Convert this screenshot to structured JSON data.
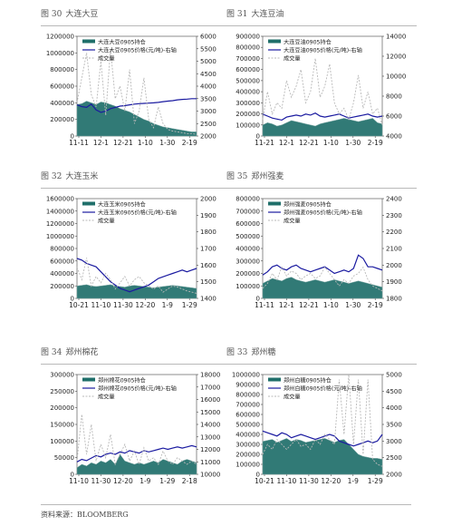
{
  "panels": [
    {
      "num": "图 30",
      "title": "大连大豆"
    },
    {
      "num": "图 31",
      "title": "大连豆油"
    },
    {
      "num": "图 32",
      "title": "大连玉米"
    },
    {
      "num": "图 35",
      "title": "郑州强麦"
    },
    {
      "num": "图 34",
      "title": "郑州棉花"
    },
    {
      "num": "图 33",
      "title": "郑州糖"
    }
  ],
  "source": "资料来源：BLOOMBERG",
  "colors": {
    "area": "#1f6f6a",
    "area_light": "#7fa9a6",
    "line": "#1a1aa0",
    "dash": "#b8b8b8"
  },
  "chart_data": [
    {
      "type": "area",
      "legend": [
        "大连大豆0905持仓",
        "大连大豆0905价格(元/吨)-右轴",
        "成交量"
      ],
      "x_ticks": [
        "11-11",
        "12-1",
        "12-21",
        "1-10",
        "1-30",
        "2-19"
      ],
      "left_ticks": [
        "0",
        "200000",
        "400000",
        "600000",
        "800000",
        "1000000",
        "1200000"
      ],
      "right_ticks": [
        "2000",
        "2500",
        "3000",
        "3500",
        "4000",
        "4500",
        "5000",
        "5500",
        "6000"
      ],
      "left_range": [
        0,
        1200000
      ],
      "right_range": [
        2000,
        6000
      ],
      "series": [
        {
          "name": "大连大豆0905持仓",
          "axis": "left",
          "kind": "area",
          "values": [
            380000,
            390000,
            420000,
            400000,
            380000,
            410000,
            400000,
            380000,
            360000,
            330000,
            310000,
            290000,
            260000,
            230000,
            200000,
            180000,
            150000,
            130000,
            110000,
            100000,
            90000,
            80000,
            70000,
            60000,
            50000,
            50000
          ]
        },
        {
          "name": "大连大豆0905价格(元/吨)-右轴",
          "axis": "right",
          "kind": "line",
          "values": [
            3250,
            3180,
            3150,
            3280,
            3050,
            2950,
            3000,
            3100,
            3150,
            3200,
            3220,
            3250,
            3280,
            3300,
            3310,
            3320,
            3330,
            3350,
            3380,
            3400,
            3420,
            3450,
            3470,
            3480,
            3500,
            3500
          ]
        },
        {
          "name": "成交量",
          "axis": "left",
          "kind": "dash",
          "values": [
            400000,
            700000,
            1000000,
            500000,
            350000,
            900000,
            250000,
            1050000,
            450000,
            600000,
            300000,
            800000,
            150000,
            300000,
            700000,
            200000,
            100000,
            350000,
            150000,
            80000,
            60000,
            50000,
            40000,
            30000,
            30000,
            20000
          ]
        }
      ]
    },
    {
      "type": "area",
      "legend": [
        "大连豆油0905持仓",
        "大连豆油0905价格(元/吨)-右轴",
        "成交量"
      ],
      "x_ticks": [
        "11-21",
        "12-1",
        "12-21",
        "1-10",
        "1-30",
        "2-19"
      ],
      "left_ticks": [
        "0",
        "100000",
        "200000",
        "300000",
        "400000",
        "500000",
        "600000",
        "700000",
        "800000",
        "900000"
      ],
      "right_ticks": [
        "4000",
        "6000",
        "8000",
        "10000",
        "12000",
        "14000"
      ],
      "left_range": [
        0,
        900000
      ],
      "right_range": [
        4000,
        14000
      ],
      "series": [
        {
          "name": "大连豆油0905持仓",
          "axis": "left",
          "kind": "area",
          "values": [
            100000,
            120000,
            110000,
            90000,
            100000,
            120000,
            140000,
            130000,
            120000,
            110000,
            100000,
            90000,
            110000,
            120000,
            130000,
            140000,
            150000,
            160000,
            150000,
            140000,
            130000,
            140000,
            150000,
            160000,
            120000,
            110000
          ]
        },
        {
          "name": "大连豆油0905价格(元/吨)-右轴",
          "axis": "right",
          "kind": "line",
          "values": [
            6200,
            6000,
            5800,
            5700,
            5600,
            5900,
            6000,
            6100,
            6000,
            6200,
            6100,
            6300,
            6000,
            5900,
            6000,
            6100,
            6200,
            6000,
            5800,
            5900,
            6000,
            6100,
            6200,
            6000,
            5900,
            6000
          ]
        },
        {
          "name": "成交量",
          "axis": "left",
          "kind": "dash",
          "values": [
            150000,
            400000,
            200000,
            300000,
            250000,
            500000,
            350000,
            450000,
            600000,
            300000,
            400000,
            700000,
            350000,
            450000,
            650000,
            300000,
            200000,
            250000,
            150000,
            300000,
            550000,
            250000,
            400000,
            200000,
            250000,
            100000
          ]
        }
      ]
    },
    {
      "type": "area",
      "legend": [
        "大连玉米0905持仓",
        "大连玉米0905价格(元/吨)-右轴",
        "成交量"
      ],
      "x_ticks": [
        "10-21",
        "11-10",
        "11-30",
        "12-20",
        "1-9",
        "1-29"
      ],
      "left_ticks": [
        "0",
        "200000",
        "400000",
        "600000",
        "800000",
        "1000000",
        "1200000",
        "1400000",
        "1600000"
      ],
      "right_ticks": [
        "1400",
        "1500",
        "1600",
        "1700",
        "1800",
        "1900",
        "2000"
      ],
      "left_range": [
        0,
        1600000
      ],
      "right_range": [
        1400,
        2000
      ],
      "series": [
        {
          "name": "大连玉米0905持仓",
          "axis": "left",
          "kind": "area",
          "values": [
            200000,
            210000,
            220000,
            200000,
            190000,
            200000,
            210000,
            220000,
            200000,
            190000,
            180000,
            200000,
            210000,
            200000,
            190000,
            180000,
            170000,
            180000,
            190000,
            200000,
            210000,
            200000,
            190000,
            180000,
            170000,
            160000
          ]
        },
        {
          "name": "大连玉米0905价格(元/吨)-右轴",
          "axis": "right",
          "kind": "line",
          "values": [
            1640,
            1630,
            1610,
            1600,
            1590,
            1560,
            1530,
            1500,
            1480,
            1460,
            1450,
            1440,
            1450,
            1460,
            1470,
            1480,
            1500,
            1520,
            1530,
            1540,
            1550,
            1560,
            1570,
            1560,
            1570,
            1580
          ]
        },
        {
          "name": "成交量",
          "axis": "left",
          "kind": "dash",
          "values": [
            500000,
            300000,
            650000,
            200000,
            350000,
            250000,
            400000,
            300000,
            150000,
            250000,
            350000,
            200000,
            300000,
            350000,
            250000,
            200000,
            150000,
            200000,
            100000,
            150000,
            200000,
            180000,
            150000,
            120000,
            100000,
            80000
          ]
        }
      ]
    },
    {
      "type": "area",
      "legend": [
        "郑州强麦0905持仓",
        "郑州强麦0905价格(元/吨)-右轴",
        "成交量"
      ],
      "x_ticks": [
        "11-11",
        "12-1",
        "12-21",
        "1-10",
        "1-30",
        "2-19"
      ],
      "left_ticks": [
        "0",
        "100000",
        "200000",
        "300000",
        "400000",
        "500000",
        "600000",
        "700000",
        "800000"
      ],
      "right_ticks": [
        "1800",
        "1900",
        "2000",
        "2100",
        "2200",
        "2300",
        "2400"
      ],
      "left_range": [
        0,
        800000
      ],
      "right_range": [
        1800,
        2400
      ],
      "series": [
        {
          "name": "郑州强麦0905持仓",
          "axis": "left",
          "kind": "area",
          "values": [
            120000,
            140000,
            160000,
            150000,
            140000,
            160000,
            170000,
            150000,
            140000,
            130000,
            140000,
            150000,
            140000,
            130000,
            140000,
            150000,
            140000,
            130000,
            120000,
            130000,
            140000,
            130000,
            120000,
            110000,
            100000,
            90000
          ]
        },
        {
          "name": "郑州强麦0905价格(元/吨)-右轴",
          "axis": "right",
          "kind": "line",
          "values": [
            1940,
            1960,
            1990,
            2000,
            1980,
            1970,
            1990,
            2000,
            1980,
            1970,
            1960,
            1970,
            1980,
            1990,
            1970,
            1950,
            1960,
            1970,
            1960,
            1980,
            2060,
            2040,
            1990,
            1990,
            1980,
            1970
          ]
        },
        {
          "name": "成交量",
          "axis": "left",
          "kind": "dash",
          "values": [
            80000,
            120000,
            200000,
            150000,
            250000,
            180000,
            220000,
            200000,
            150000,
            180000,
            200000,
            160000,
            180000,
            250000,
            200000,
            150000,
            100000,
            150000,
            120000,
            180000,
            200000,
            250000,
            150000,
            100000,
            80000,
            60000
          ]
        }
      ]
    },
    {
      "type": "area",
      "legend": [
        "郑州棉花0905持仓",
        "郑州棉花0905价格(元/吨)-右轴",
        "成交量"
      ],
      "x_ticks": [
        "11-10",
        "11-30",
        "12-20",
        "1-9",
        "1-29",
        "2-18"
      ],
      "left_ticks": [
        "0",
        "50000",
        "100000",
        "150000",
        "200000",
        "250000",
        "300000"
      ],
      "right_ticks": [
        "10000",
        "11000",
        "12000",
        "13000",
        "14000",
        "15000",
        "16000",
        "17000",
        "18000"
      ],
      "left_range": [
        0,
        300000
      ],
      "right_range": [
        10000,
        18000
      ],
      "series": [
        {
          "name": "郑州棉花0905持仓",
          "axis": "left",
          "kind": "area",
          "values": [
            20000,
            30000,
            25000,
            35000,
            30000,
            40000,
            35000,
            45000,
            30000,
            60000,
            40000,
            35000,
            30000,
            35000,
            30000,
            35000,
            40000,
            35000,
            45000,
            40000,
            35000,
            30000,
            40000,
            45000,
            40000,
            35000
          ]
        },
        {
          "name": "郑州棉花0905价格(元/吨)-右轴",
          "axis": "right",
          "kind": "line",
          "values": [
            11000,
            11200,
            11100,
            11300,
            11500,
            11400,
            11600,
            11700,
            11600,
            11800,
            11700,
            11900,
            11800,
            11700,
            11900,
            11800,
            11900,
            12000,
            12100,
            12000,
            12100,
            12200,
            12100,
            12200,
            12300,
            12200
          ]
        },
        {
          "name": "成交量",
          "axis": "left",
          "kind": "dash",
          "values": [
            40000,
            180000,
            60000,
            150000,
            40000,
            90000,
            50000,
            120000,
            30000,
            60000,
            90000,
            40000,
            70000,
            30000,
            80000,
            40000,
            50000,
            30000,
            70000,
            40000,
            30000,
            50000,
            40000,
            30000,
            40000,
            30000
          ]
        }
      ]
    },
    {
      "type": "area",
      "legend": [
        "郑州白糖0905持仓",
        "郑州白糖0905价格(元/吨)-右轴",
        "成交量"
      ],
      "x_ticks": [
        "10-21",
        "11-10",
        "11-30",
        "12-20",
        "1-9",
        "1-29"
      ],
      "left_ticks": [
        "0",
        "100000",
        "200000",
        "300000",
        "400000",
        "500000",
        "600000",
        "700000",
        "800000",
        "900000",
        "1000000"
      ],
      "right_ticks": [
        "2000",
        "2500",
        "3000",
        "3500",
        "4000",
        "4500",
        "5000"
      ],
      "left_range": [
        0,
        1000000
      ],
      "right_range": [
        2000,
        5000
      ],
      "series": [
        {
          "name": "郑州白糖0905持仓",
          "axis": "left",
          "kind": "area",
          "values": [
            330000,
            340000,
            350000,
            320000,
            340000,
            360000,
            330000,
            350000,
            340000,
            320000,
            330000,
            340000,
            350000,
            360000,
            340000,
            320000,
            340000,
            350000,
            300000,
            250000,
            200000,
            180000,
            170000,
            160000,
            160000,
            150000
          ]
        },
        {
          "name": "郑州白糖0905价格(元/吨)-右轴",
          "axis": "right",
          "kind": "line",
          "values": [
            3300,
            3250,
            3200,
            3150,
            3250,
            3200,
            3100,
            3150,
            3200,
            3150,
            3100,
            3050,
            3100,
            3150,
            3200,
            3150,
            3000,
            2950,
            2900,
            2850,
            2900,
            2950,
            3000,
            2950,
            3000,
            3200
          ]
        },
        {
          "name": "成交量",
          "axis": "left",
          "kind": "dash",
          "values": [
            200000,
            300000,
            250000,
            350000,
            300000,
            250000,
            300000,
            350000,
            280000,
            300000,
            250000,
            350000,
            300000,
            400000,
            350000,
            300000,
            950000,
            400000,
            1000000,
            300000,
            950000,
            200000,
            950000,
            150000,
            100000,
            80000
          ]
        }
      ]
    }
  ]
}
